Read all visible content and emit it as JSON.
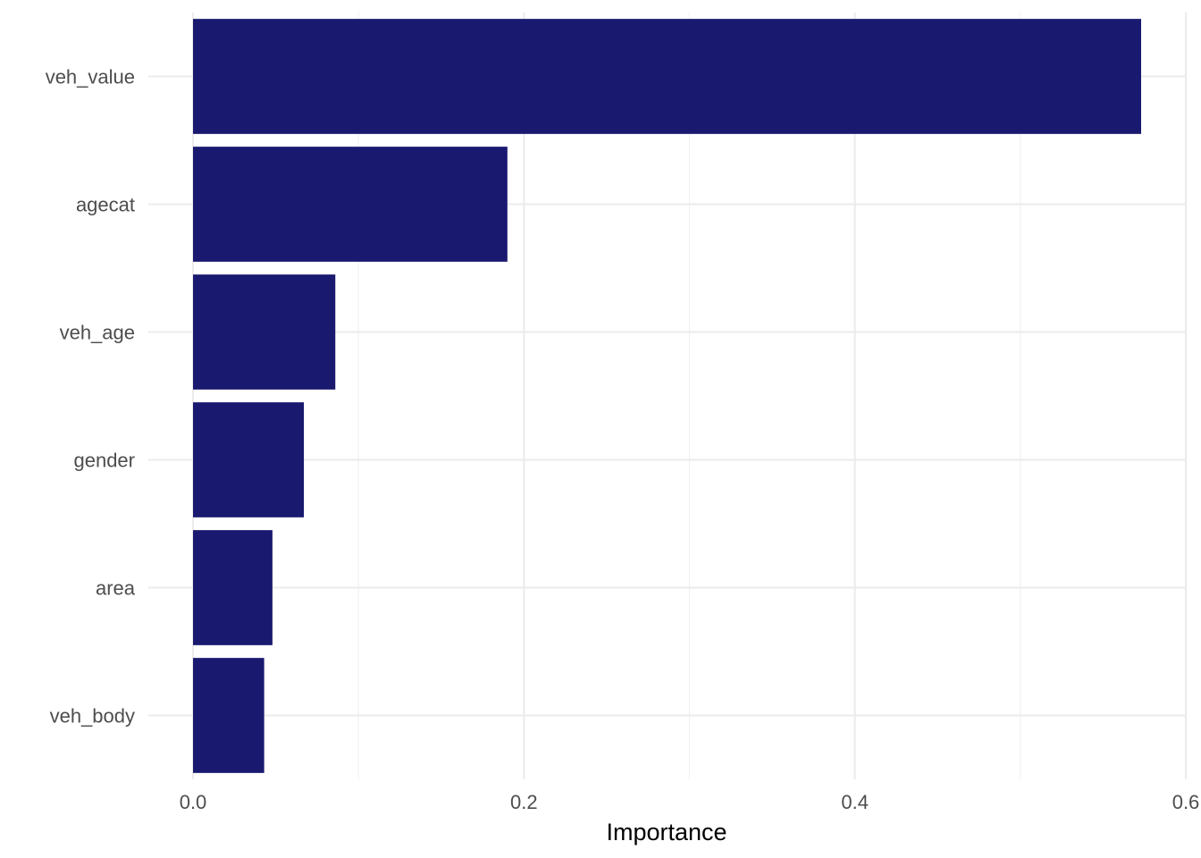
{
  "chart_data": {
    "type": "bar",
    "orientation": "horizontal",
    "categories": [
      "veh_value",
      "agecat",
      "veh_age",
      "gender",
      "area",
      "veh_body"
    ],
    "values": [
      0.573,
      0.19,
      0.086,
      0.067,
      0.048,
      0.043
    ],
    "xlabel": "Importance",
    "ylabel": "",
    "xlim": [
      0,
      0.6
    ],
    "x_ticks": [
      "0.0",
      "0.2",
      "0.4",
      "0.6"
    ],
    "grid": true,
    "bar_color": "#191970"
  }
}
